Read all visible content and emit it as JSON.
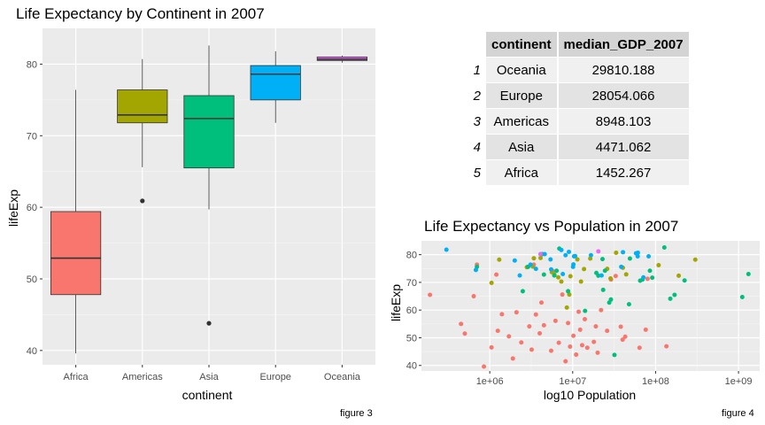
{
  "chart_data": [
    {
      "type": "box",
      "title": "Life Expectancy by Continent in 2007",
      "xlabel": "continent",
      "ylabel": "lifeExp",
      "ylim": [
        38,
        85
      ],
      "yticks": [
        40,
        50,
        60,
        70,
        80
      ],
      "categories": [
        "Africa",
        "Americas",
        "Asia",
        "Europe",
        "Oceania"
      ],
      "colors": [
        "#F8766D",
        "#A3A500",
        "#00BF7D",
        "#00B0F6",
        "#E76BF3"
      ],
      "boxes": [
        {
          "category": "Africa",
          "min": 39.6,
          "q1": 47.8,
          "median": 52.9,
          "q3": 59.4,
          "max": 76.4,
          "outliers": []
        },
        {
          "category": "Americas",
          "min": 65.6,
          "q1": 71.8,
          "median": 72.9,
          "q3": 76.4,
          "max": 80.7,
          "outliers": [
            60.9
          ]
        },
        {
          "category": "Asia",
          "min": 59.7,
          "q1": 65.5,
          "median": 72.4,
          "q3": 75.6,
          "max": 82.6,
          "outliers": [
            43.8
          ]
        },
        {
          "category": "Europe",
          "min": 71.8,
          "q1": 75.0,
          "median": 78.6,
          "q3": 79.8,
          "max": 81.8,
          "outliers": []
        },
        {
          "category": "Oceania",
          "min": 80.2,
          "q1": 80.5,
          "median": 80.7,
          "q3": 81.0,
          "max": 81.2,
          "outliers": []
        }
      ],
      "grid": true
    },
    {
      "type": "table",
      "columns": [
        "continent",
        "median_GDP_2007"
      ],
      "rows": [
        {
          "index": "1",
          "continent": "Oceania",
          "median_GDP_2007": "29810.188"
        },
        {
          "index": "2",
          "continent": "Europe",
          "median_GDP_2007": "28054.066"
        },
        {
          "index": "3",
          "continent": "Americas",
          "median_GDP_2007": "8948.103"
        },
        {
          "index": "4",
          "continent": "Asia",
          "median_GDP_2007": "4471.062"
        },
        {
          "index": "5",
          "continent": "Africa",
          "median_GDP_2007": "1452.267"
        }
      ]
    },
    {
      "type": "scatter",
      "title": "Life Expectancy vs Population in 2007",
      "xlabel": "log10 Population",
      "ylabel": "lifeExp",
      "x_scale": "log10",
      "xlim": [
        150000,
        1800000000
      ],
      "ylim": [
        38,
        85
      ],
      "xticks": [
        1000000,
        10000000,
        100000000,
        1000000000
      ],
      "xtick_labels": [
        "1e+06",
        "1e+07",
        "1e+08",
        "1e+09"
      ],
      "yticks": [
        40,
        50,
        60,
        70,
        80
      ],
      "grid": true,
      "colors": {
        "Africa": "#F8766D",
        "Americas": "#A3A500",
        "Asia": "#00BF7D",
        "Europe": "#00B0F6",
        "Oceania": "#E76BF3"
      },
      "points": [
        {
          "x": 190000,
          "y": 65.5,
          "group": "Africa"
        },
        {
          "x": 450000,
          "y": 55,
          "group": "Africa"
        },
        {
          "x": 500000,
          "y": 51.5,
          "group": "Africa"
        },
        {
          "x": 640000,
          "y": 65,
          "group": "Africa"
        },
        {
          "x": 700000,
          "y": 76.4,
          "group": "Africa"
        },
        {
          "x": 850000,
          "y": 39.6,
          "group": "Africa"
        },
        {
          "x": 1050000,
          "y": 46.5,
          "group": "Africa"
        },
        {
          "x": 1200000,
          "y": 72.8,
          "group": "Africa"
        },
        {
          "x": 1250000,
          "y": 52.5,
          "group": "Africa"
        },
        {
          "x": 1400000,
          "y": 58.5,
          "group": "Africa"
        },
        {
          "x": 1700000,
          "y": 50.5,
          "group": "Africa"
        },
        {
          "x": 1900000,
          "y": 42.5,
          "group": "Africa"
        },
        {
          "x": 2100000,
          "y": 59.2,
          "group": "Africa"
        },
        {
          "x": 2400000,
          "y": 48.3,
          "group": "Africa"
        },
        {
          "x": 3000000,
          "y": 54.1,
          "group": "Africa"
        },
        {
          "x": 3200000,
          "y": 45.7,
          "group": "Africa"
        },
        {
          "x": 3400000,
          "y": 76.4,
          "group": "Africa"
        },
        {
          "x": 3600000,
          "y": 58.4,
          "group": "Africa"
        },
        {
          "x": 4000000,
          "y": 51.6,
          "group": "Africa"
        },
        {
          "x": 4200000,
          "y": 62.7,
          "group": "Africa"
        },
        {
          "x": 4500000,
          "y": 54.5,
          "group": "Africa"
        },
        {
          "x": 5500000,
          "y": 45.3,
          "group": "Africa"
        },
        {
          "x": 5800000,
          "y": 74,
          "group": "Africa"
        },
        {
          "x": 6200000,
          "y": 56.1,
          "group": "Africa"
        },
        {
          "x": 6800000,
          "y": 48.2,
          "group": "Africa"
        },
        {
          "x": 7500000,
          "y": 65.6,
          "group": "Africa"
        },
        {
          "x": 8200000,
          "y": 41.5,
          "group": "Africa"
        },
        {
          "x": 8800000,
          "y": 55.3,
          "group": "Africa"
        },
        {
          "x": 9300000,
          "y": 46.8,
          "group": "Africa"
        },
        {
          "x": 10200000,
          "y": 50.7,
          "group": "Africa"
        },
        {
          "x": 11000000,
          "y": 43.9,
          "group": "Africa"
        },
        {
          "x": 11800000,
          "y": 59.4,
          "group": "Africa"
        },
        {
          "x": 12300000,
          "y": 52.9,
          "group": "Africa"
        },
        {
          "x": 13000000,
          "y": 47.3,
          "group": "Africa"
        },
        {
          "x": 14000000,
          "y": 56.7,
          "group": "Africa"
        },
        {
          "x": 15000000,
          "y": 46.4,
          "group": "Africa"
        },
        {
          "x": 18000000,
          "y": 48.5,
          "group": "Africa"
        },
        {
          "x": 19000000,
          "y": 54.1,
          "group": "Africa"
        },
        {
          "x": 20000000,
          "y": 44.6,
          "group": "Africa"
        },
        {
          "x": 22000000,
          "y": 60,
          "group": "Africa"
        },
        {
          "x": 26000000,
          "y": 52.5,
          "group": "Africa"
        },
        {
          "x": 29000000,
          "y": 71,
          "group": "Africa"
        },
        {
          "x": 33000000,
          "y": 72.3,
          "group": "Africa"
        },
        {
          "x": 38000000,
          "y": 54,
          "group": "Africa"
        },
        {
          "x": 40000000,
          "y": 49.3,
          "group": "Africa"
        },
        {
          "x": 43000000,
          "y": 50.4,
          "group": "Africa"
        },
        {
          "x": 64000000,
          "y": 46.4,
          "group": "Africa"
        },
        {
          "x": 76000000,
          "y": 52.9,
          "group": "Africa"
        },
        {
          "x": 80000000,
          "y": 71.3,
          "group": "Africa"
        },
        {
          "x": 135000000,
          "y": 46.9,
          "group": "Africa"
        },
        {
          "x": 1050000,
          "y": 69.8,
          "group": "Americas"
        },
        {
          "x": 1300000,
          "y": 78.2,
          "group": "Americas"
        },
        {
          "x": 2800000,
          "y": 75.5,
          "group": "Americas"
        },
        {
          "x": 3300000,
          "y": 75.7,
          "group": "Americas"
        },
        {
          "x": 3400000,
          "y": 78.7,
          "group": "Americas"
        },
        {
          "x": 4100000,
          "y": 78.8,
          "group": "Americas"
        },
        {
          "x": 5600000,
          "y": 73.7,
          "group": "Americas"
        },
        {
          "x": 6000000,
          "y": 72.9,
          "group": "Americas"
        },
        {
          "x": 6700000,
          "y": 71.8,
          "group": "Americas"
        },
        {
          "x": 7300000,
          "y": 70.3,
          "group": "Americas"
        },
        {
          "x": 8500000,
          "y": 60.9,
          "group": "Americas"
        },
        {
          "x": 9100000,
          "y": 65.6,
          "group": "Americas"
        },
        {
          "x": 9400000,
          "y": 72.2,
          "group": "Americas"
        },
        {
          "x": 11400000,
          "y": 78.3,
          "group": "Americas"
        },
        {
          "x": 12600000,
          "y": 70.3,
          "group": "Americas"
        },
        {
          "x": 13700000,
          "y": 74.8,
          "group": "Americas"
        },
        {
          "x": 16300000,
          "y": 78.6,
          "group": "Americas"
        },
        {
          "x": 26100000,
          "y": 74.9,
          "group": "Americas"
        },
        {
          "x": 28600000,
          "y": 71.4,
          "group": "Americas"
        },
        {
          "x": 33400000,
          "y": 80.7,
          "group": "Americas"
        },
        {
          "x": 40300000,
          "y": 75.3,
          "group": "Americas"
        },
        {
          "x": 44200000,
          "y": 72.9,
          "group": "Americas"
        },
        {
          "x": 108700000,
          "y": 76.2,
          "group": "Americas"
        },
        {
          "x": 190000000,
          "y": 72.4,
          "group": "Americas"
        },
        {
          "x": 301000000,
          "y": 78.2,
          "group": "Americas"
        },
        {
          "x": 700000,
          "y": 75.6,
          "group": "Asia"
        },
        {
          "x": 2500000,
          "y": 66.8,
          "group": "Asia"
        },
        {
          "x": 2900000,
          "y": 75.6,
          "group": "Asia"
        },
        {
          "x": 4300000,
          "y": 80.2,
          "group": "Asia"
        },
        {
          "x": 4500000,
          "y": 72.8,
          "group": "Asia"
        },
        {
          "x": 6000000,
          "y": 72.5,
          "group": "Asia"
        },
        {
          "x": 6400000,
          "y": 74.2,
          "group": "Asia"
        },
        {
          "x": 6900000,
          "y": 82.2,
          "group": "Asia"
        },
        {
          "x": 8800000,
          "y": 66.8,
          "group": "Asia"
        },
        {
          "x": 14100000,
          "y": 59.7,
          "group": "Asia"
        },
        {
          "x": 19300000,
          "y": 73.4,
          "group": "Asia"
        },
        {
          "x": 20400000,
          "y": 72.4,
          "group": "Asia"
        },
        {
          "x": 22900000,
          "y": 78.4,
          "group": "Asia"
        },
        {
          "x": 23300000,
          "y": 67.3,
          "group": "Asia"
        },
        {
          "x": 24500000,
          "y": 74.2,
          "group": "Asia"
        },
        {
          "x": 27600000,
          "y": 62.7,
          "group": "Asia"
        },
        {
          "x": 28900000,
          "y": 63.8,
          "group": "Asia"
        },
        {
          "x": 31900000,
          "y": 43.8,
          "group": "Asia"
        },
        {
          "x": 47800000,
          "y": 62.1,
          "group": "Asia"
        },
        {
          "x": 49000000,
          "y": 78.6,
          "group": "Asia"
        },
        {
          "x": 65100000,
          "y": 70.6,
          "group": "Asia"
        },
        {
          "x": 69500000,
          "y": 71,
          "group": "Asia"
        },
        {
          "x": 85300000,
          "y": 74.2,
          "group": "Asia"
        },
        {
          "x": 91100000,
          "y": 71.7,
          "group": "Asia"
        },
        {
          "x": 127500000,
          "y": 82.6,
          "group": "Asia"
        },
        {
          "x": 150400000,
          "y": 64.1,
          "group": "Asia"
        },
        {
          "x": 169300000,
          "y": 65.5,
          "group": "Asia"
        },
        {
          "x": 223500000,
          "y": 70.7,
          "group": "Asia"
        },
        {
          "x": 1110000000,
          "y": 64.7,
          "group": "Asia"
        },
        {
          "x": 1318000000,
          "y": 73,
          "group": "Asia"
        },
        {
          "x": 300000,
          "y": 81.8,
          "group": "Europe"
        },
        {
          "x": 680000,
          "y": 74.5,
          "group": "Europe"
        },
        {
          "x": 2000000,
          "y": 77.9,
          "group": "Europe"
        },
        {
          "x": 2300000,
          "y": 72.5,
          "group": "Europe"
        },
        {
          "x": 3100000,
          "y": 76.4,
          "group": "Europe"
        },
        {
          "x": 3600000,
          "y": 74.9,
          "group": "Europe"
        },
        {
          "x": 4100000,
          "y": 80.2,
          "group": "Europe"
        },
        {
          "x": 4600000,
          "y": 80.2,
          "group": "Europe"
        },
        {
          "x": 5400000,
          "y": 78.3,
          "group": "Europe"
        },
        {
          "x": 5500000,
          "y": 74.7,
          "group": "Europe"
        },
        {
          "x": 7300000,
          "y": 81.7,
          "group": "Europe"
        },
        {
          "x": 7600000,
          "y": 73.0,
          "group": "Europe"
        },
        {
          "x": 8200000,
          "y": 79.8,
          "group": "Europe"
        },
        {
          "x": 9000000,
          "y": 81.0,
          "group": "Europe"
        },
        {
          "x": 10100000,
          "y": 75.6,
          "group": "Europe"
        },
        {
          "x": 10200000,
          "y": 76.5,
          "group": "Europe"
        },
        {
          "x": 10400000,
          "y": 79.4,
          "group": "Europe"
        },
        {
          "x": 10700000,
          "y": 79.5,
          "group": "Europe"
        },
        {
          "x": 16600000,
          "y": 79.8,
          "group": "Europe"
        },
        {
          "x": 22300000,
          "y": 72.5,
          "group": "Europe"
        },
        {
          "x": 38500000,
          "y": 75.6,
          "group": "Europe"
        },
        {
          "x": 40400000,
          "y": 80.9,
          "group": "Europe"
        },
        {
          "x": 58100000,
          "y": 80.5,
          "group": "Europe"
        },
        {
          "x": 60800000,
          "y": 79.4,
          "group": "Europe"
        },
        {
          "x": 61100000,
          "y": 80.7,
          "group": "Europe"
        },
        {
          "x": 71200000,
          "y": 71.8,
          "group": "Europe"
        },
        {
          "x": 82400000,
          "y": 79.4,
          "group": "Europe"
        },
        {
          "x": 4100000,
          "y": 80.2,
          "group": "Oceania"
        },
        {
          "x": 20400000,
          "y": 81.2,
          "group": "Oceania"
        }
      ]
    }
  ],
  "captions": {
    "figure3": "figure 3",
    "figure4": "figure 4"
  }
}
